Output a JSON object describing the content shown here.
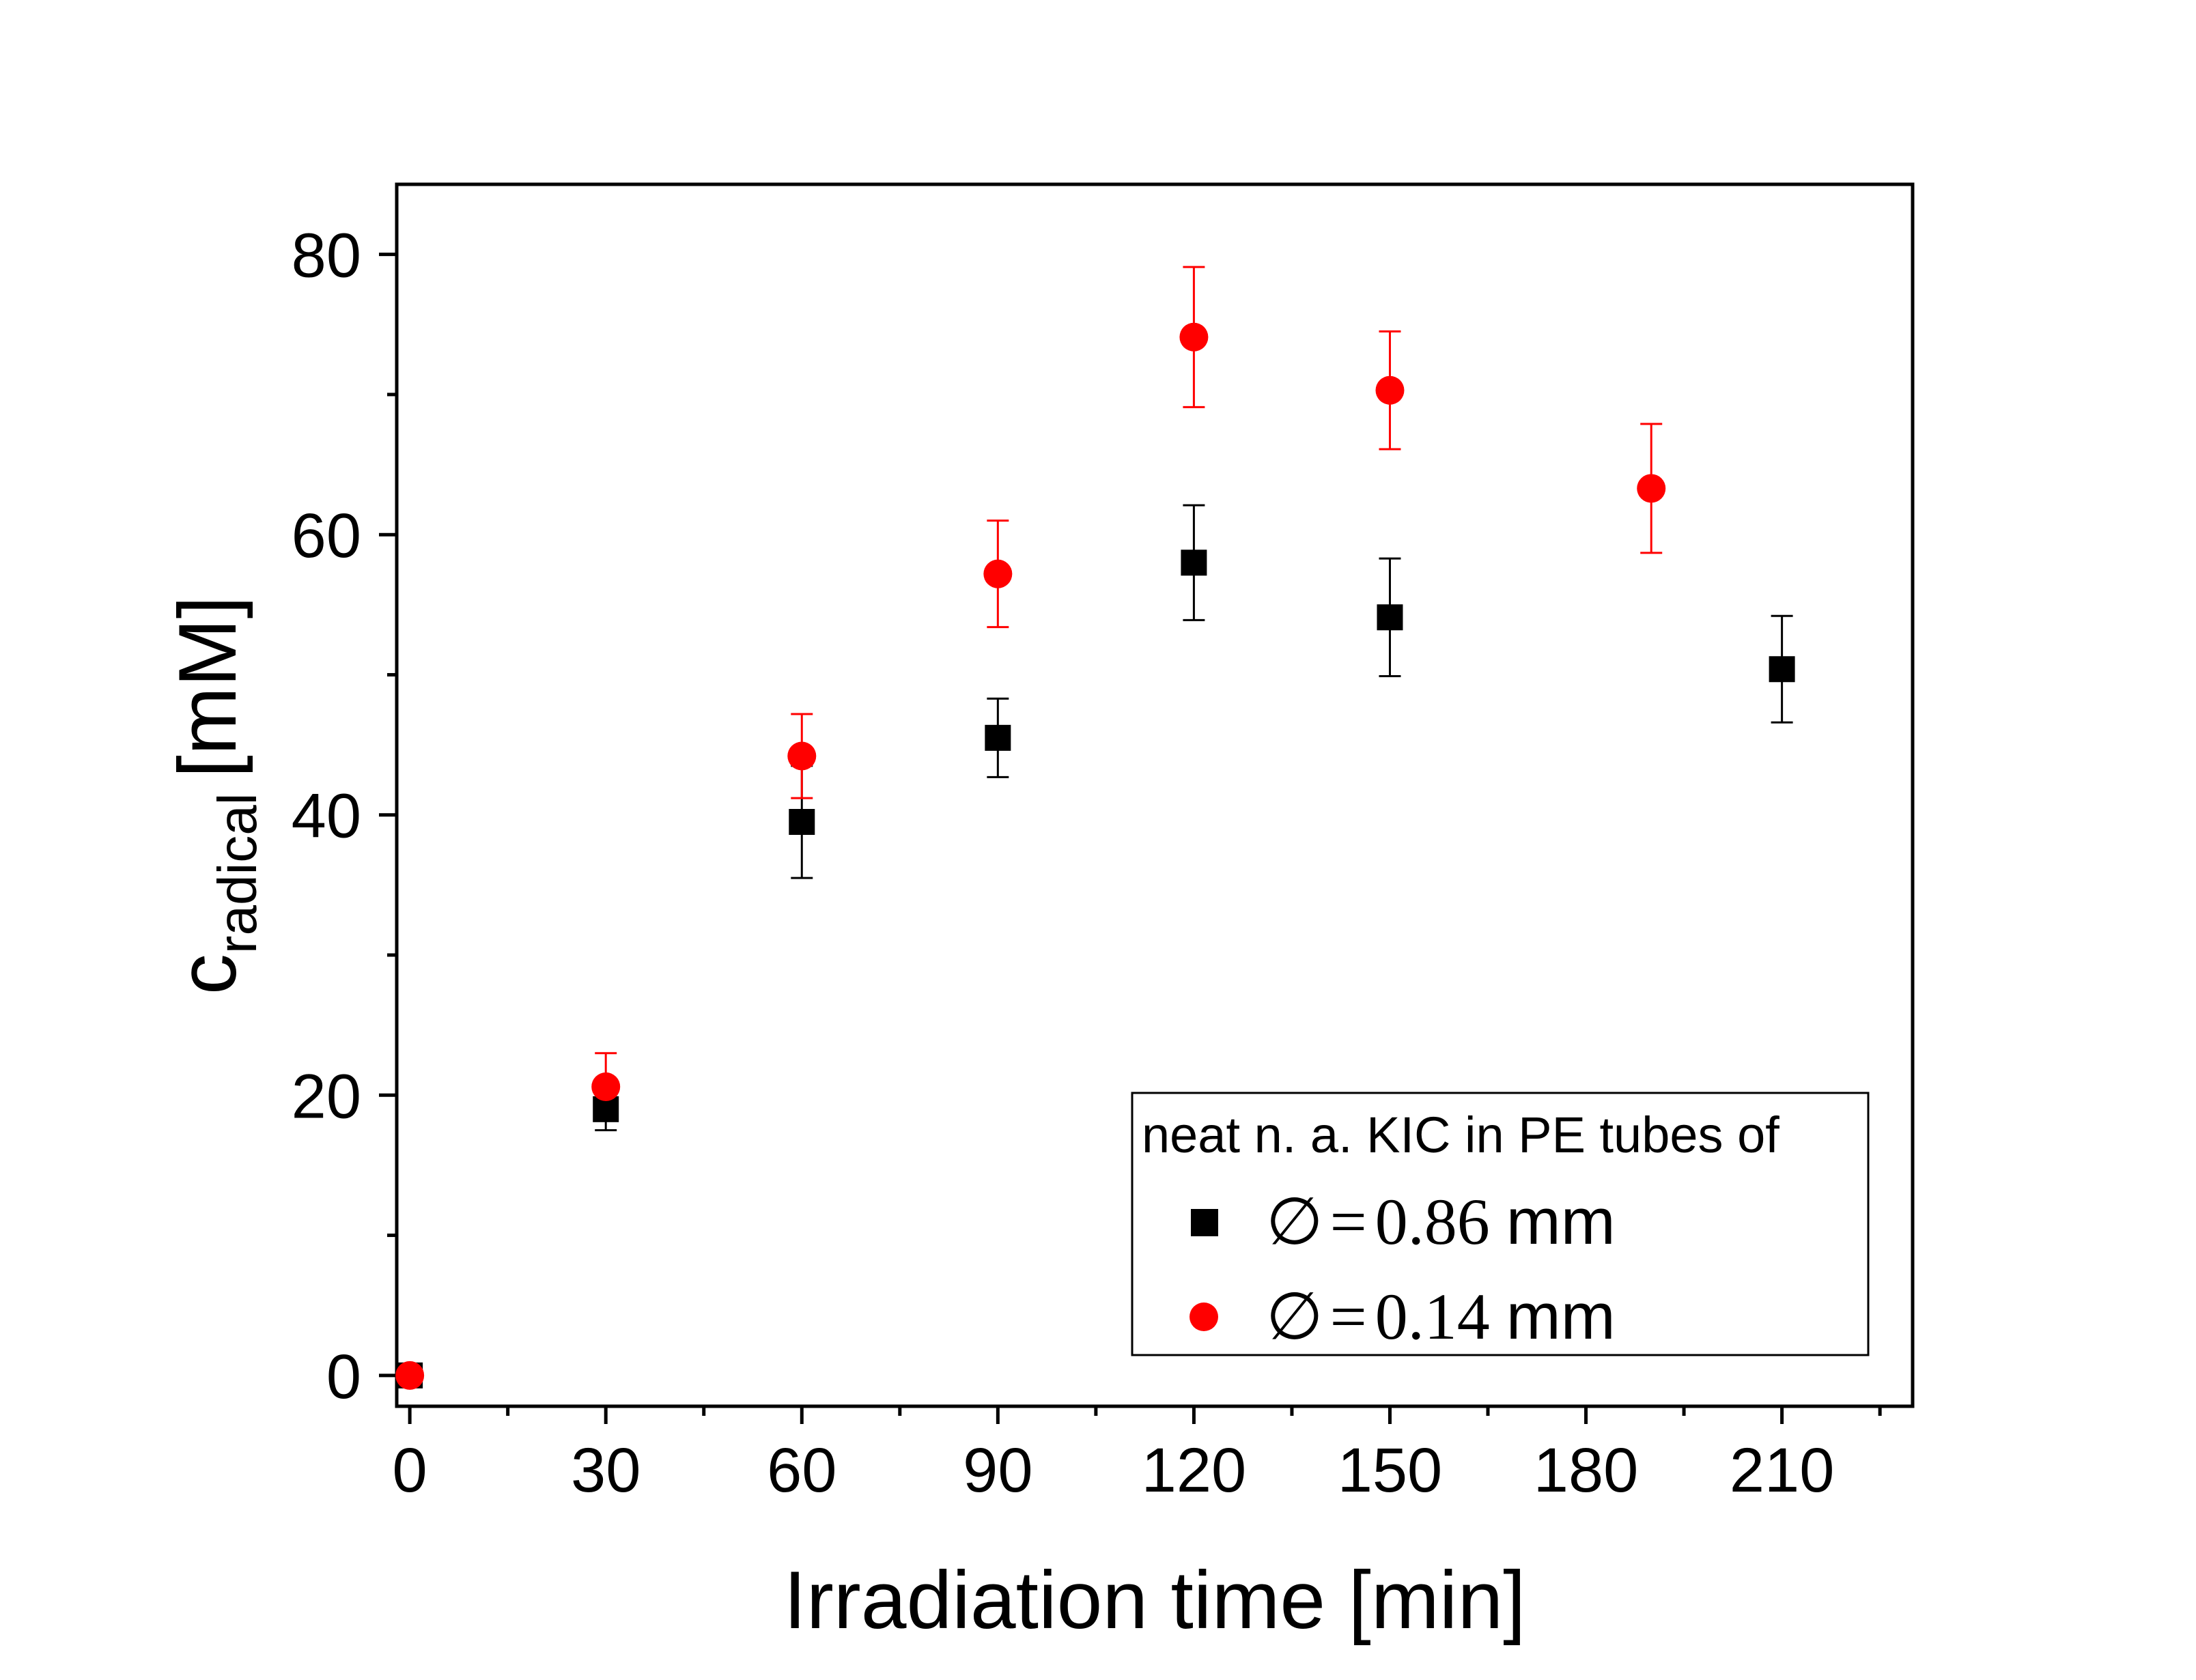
{
  "chart_data": {
    "type": "scatter",
    "title": "",
    "xlabel": "Irradiation time [min]",
    "ylabel": {
      "main": "c",
      "subscript": "radical",
      "unit": "[mM]"
    },
    "xlim": [
      -2,
      230
    ],
    "ylim": [
      -2.2,
      85
    ],
    "xticks": [
      0,
      30,
      60,
      90,
      120,
      150,
      180,
      210
    ],
    "xtick_labels": [
      "0",
      "30",
      "60",
      "90",
      "120",
      "150",
      "180",
      "210"
    ],
    "xminor": [
      15,
      45,
      75,
      105,
      135,
      165,
      195,
      225
    ],
    "yticks": [
      0,
      20,
      40,
      60,
      80
    ],
    "ytick_labels": [
      "0",
      "20",
      "40",
      "60",
      "80"
    ],
    "yminor": [
      10,
      30,
      50,
      70
    ],
    "grid": false,
    "legend": {
      "title": "neat n. a. KIC in PE tubes of",
      "position": "bottom-right"
    },
    "series": [
      {
        "name": "0.86 mm",
        "legend_symbol": "∅",
        "legend_eq": "=",
        "legend_value": "0.86",
        "legend_unit": "mm",
        "marker": "square",
        "color": "#000000",
        "points": [
          {
            "x": 0,
            "y": 0,
            "err": 0
          },
          {
            "x": 30,
            "y": 19,
            "err": 1.5
          },
          {
            "x": 60,
            "y": 39.5,
            "err": 4
          },
          {
            "x": 90,
            "y": 45.5,
            "err": 2.8
          },
          {
            "x": 120,
            "y": 58,
            "err": 4.1
          },
          {
            "x": 150,
            "y": 54.1,
            "err": 4.2
          },
          {
            "x": 210,
            "y": 50.4,
            "err": 3.8
          }
        ]
      },
      {
        "name": "0.14 mm",
        "legend_symbol": "∅",
        "legend_eq": "=",
        "legend_value": "0.14",
        "legend_unit": "mm",
        "marker": "circle",
        "color": "#ff0000",
        "points": [
          {
            "x": 0,
            "y": 0,
            "err": 0
          },
          {
            "x": 30,
            "y": 20.6,
            "err": 2.4
          },
          {
            "x": 60,
            "y": 44.2,
            "err": 3
          },
          {
            "x": 90,
            "y": 57.2,
            "err": 3.8
          },
          {
            "x": 120,
            "y": 74.1,
            "err": 5
          },
          {
            "x": 150,
            "y": 70.3,
            "err": 4.2
          },
          {
            "x": 190,
            "y": 63.3,
            "err": 4.6
          }
        ]
      }
    ]
  }
}
